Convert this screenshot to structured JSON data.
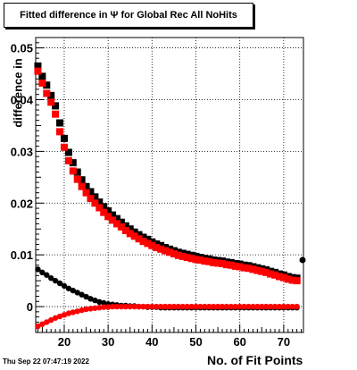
{
  "header": {
    "title": "Fitted difference in  Ψ  for Global Rec All NoHits"
  },
  "footer": {
    "timestamp": "Thu Sep 22 07:47:19 2022"
  },
  "chart_data": {
    "type": "scatter",
    "title": "Fitted difference in  Ψ  for Global Rec All NoHits",
    "xlabel": "No. of Fit Points",
    "ylabel": "difference in",
    "xlim": [
      13.5,
      74.5
    ],
    "ylim": [
      -0.005,
      0.052
    ],
    "xticks": [
      20,
      30,
      40,
      50,
      60,
      70
    ],
    "yticks": [
      0,
      0.01,
      0.02,
      0.03,
      0.04,
      0.05
    ],
    "yticklabels": [
      "0",
      "0.01",
      "0.02",
      "0.03",
      "0.04",
      "0.05"
    ],
    "grid": true,
    "series": [
      {
        "color": "#000000",
        "marker": "square",
        "x": [
          14,
          15,
          16,
          17,
          18,
          19,
          20,
          21,
          22,
          23,
          24,
          25,
          26,
          27,
          28,
          29,
          30,
          31,
          32,
          33,
          34,
          35,
          36,
          37,
          38,
          39,
          40,
          41,
          42,
          43,
          44,
          45,
          46,
          47,
          48,
          49,
          50,
          51,
          52,
          53,
          54,
          55,
          56,
          57,
          58,
          59,
          60,
          61,
          62,
          63,
          64,
          65,
          66,
          67,
          68,
          69,
          70,
          71,
          72,
          73
        ],
        "y": [
          0.0465,
          0.0445,
          0.0428,
          0.0408,
          0.0388,
          0.0355,
          0.0325,
          0.0298,
          0.0278,
          0.026,
          0.0245,
          0.0232,
          0.0222,
          0.0212,
          0.0202,
          0.0193,
          0.0185,
          0.0177,
          0.017,
          0.0163,
          0.0156,
          0.015,
          0.0144,
          0.0139,
          0.0134,
          0.013,
          0.0125,
          0.0121,
          0.0118,
          0.0114,
          0.0111,
          0.0108,
          0.0105,
          0.0103,
          0.0101,
          0.0099,
          0.0097,
          0.0095,
          0.0093,
          0.0092,
          0.009,
          0.0089,
          0.0088,
          0.0086,
          0.0085,
          0.0083,
          0.0082,
          0.008,
          0.0079,
          0.0077,
          0.0075,
          0.0073,
          0.0071,
          0.0068,
          0.0066,
          0.0063,
          0.0061,
          0.0058,
          0.0056,
          0.0055
        ]
      },
      {
        "color": "#ff0000",
        "marker": "square",
        "x": [
          14,
          15,
          16,
          17,
          18,
          19,
          20,
          21,
          22,
          23,
          24,
          25,
          26,
          27,
          28,
          29,
          30,
          31,
          32,
          33,
          34,
          35,
          36,
          37,
          38,
          39,
          40,
          41,
          42,
          43,
          44,
          45,
          46,
          47,
          48,
          49,
          50,
          51,
          52,
          53,
          54,
          55,
          56,
          57,
          58,
          59,
          60,
          61,
          62,
          63,
          64,
          65,
          66,
          67,
          68,
          69,
          70,
          71,
          72,
          73
        ],
        "y": [
          0.0455,
          0.0432,
          0.0412,
          0.0395,
          0.0372,
          0.0338,
          0.0308,
          0.0282,
          0.0262,
          0.0246,
          0.0232,
          0.022,
          0.0209,
          0.02,
          0.0191,
          0.0182,
          0.0174,
          0.0167,
          0.016,
          0.0154,
          0.0147,
          0.0141,
          0.0136,
          0.0131,
          0.0126,
          0.0122,
          0.0118,
          0.0114,
          0.0111,
          0.0108,
          0.0105,
          0.0102,
          0.0099,
          0.0097,
          0.0095,
          0.0093,
          0.0091,
          0.009,
          0.0088,
          0.0087,
          0.0085,
          0.0084,
          0.0083,
          0.0081,
          0.008,
          0.0078,
          0.0077,
          0.0075,
          0.0074,
          0.0072,
          0.007,
          0.0068,
          0.0066,
          0.0063,
          0.0061,
          0.0058,
          0.0056,
          0.0053,
          0.0051,
          0.005
        ]
      },
      {
        "color": "#000000",
        "marker": "circle",
        "x": [
          14,
          15,
          16,
          17,
          18,
          19,
          20,
          21,
          22,
          23,
          24,
          25,
          26,
          27,
          28,
          29,
          30,
          31,
          32,
          33,
          34,
          35,
          36,
          37,
          38,
          39,
          40,
          41,
          42,
          43,
          44,
          45,
          46,
          47,
          48,
          49,
          50,
          51,
          52,
          53,
          54,
          55,
          56,
          57,
          58,
          59,
          60,
          61,
          62,
          63,
          64,
          65,
          66,
          67,
          68,
          69,
          70,
          71,
          72,
          73
        ],
        "y": [
          0.0072,
          0.0066,
          0.0061,
          0.0055,
          0.005,
          0.0045,
          0.004,
          0.0035,
          0.0031,
          0.0027,
          0.0023,
          0.0019,
          0.0015,
          0.0012,
          0.0009,
          0.0007,
          0.0005,
          0.0004,
          0.0003,
          0.0002,
          0.0002,
          0.0001,
          0.0001,
          0.0,
          0.0,
          -0.0001,
          -0.0001,
          -0.0001,
          -0.0002,
          -0.0002,
          -0.0002,
          -0.0002,
          -0.0002,
          -0.0002,
          -0.0002,
          -0.0002,
          -0.0002,
          -0.0002,
          -0.0002,
          -0.0002,
          -0.0002,
          -0.0002,
          -0.0002,
          -0.0002,
          -0.0002,
          -0.0002,
          -0.0002,
          -0.0002,
          -0.0002,
          -0.0002,
          -0.0002,
          -0.0002,
          -0.0002,
          -0.0002,
          -0.0002,
          -0.0002,
          -0.0002,
          -0.0002,
          -0.0002,
          -0.0002
        ]
      },
      {
        "color": "#ff0000",
        "marker": "circle",
        "x": [
          14,
          15,
          16,
          17,
          18,
          19,
          20,
          21,
          22,
          23,
          24,
          25,
          26,
          27,
          28,
          29,
          30,
          31,
          32,
          33,
          34,
          35,
          36,
          37,
          38,
          39,
          40,
          41,
          42,
          43,
          44,
          45,
          46,
          47,
          48,
          49,
          50,
          51,
          52,
          53,
          54,
          55,
          56,
          57,
          58,
          59,
          60,
          61,
          62,
          63,
          64,
          65,
          66,
          67,
          68,
          69,
          70,
          71,
          72,
          73
        ],
        "y": [
          -0.0038,
          -0.0034,
          -0.003,
          -0.0026,
          -0.0022,
          -0.0019,
          -0.0016,
          -0.0013,
          -0.0011,
          -0.0009,
          -0.0007,
          -0.0005,
          -0.0004,
          -0.0003,
          -0.0002,
          -0.0001,
          -0.0001,
          0.0,
          0.0,
          0.0,
          0.0,
          0.0,
          0.0,
          0.0,
          0.0,
          0.0,
          0.0,
          0.0,
          0.0,
          0.0,
          0.0,
          0.0,
          0.0,
          0.0,
          0.0,
          0.0,
          0.0,
          0.0,
          0.0,
          0.0,
          0.0,
          0.0,
          0.0,
          0.0,
          0.0,
          0.0,
          0.0,
          0.0,
          0.0,
          0.0,
          0.0,
          0.0,
          0.0,
          0.0,
          0.0,
          0.0,
          0.0,
          0.0,
          0.0,
          0.0
        ]
      }
    ],
    "outliers": [
      {
        "x": 74.3,
        "y": 0.009,
        "color": "#000000",
        "marker": "circle"
      }
    ]
  }
}
